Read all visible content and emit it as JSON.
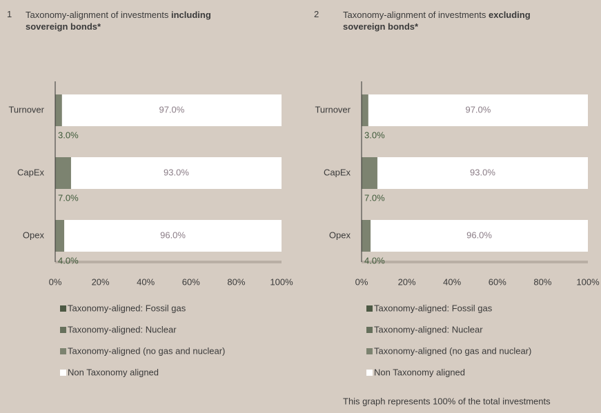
{
  "chart_data": [
    {
      "type": "stacked-bar-horizontal",
      "number": "1",
      "title": "Taxonomy-alignment of investments",
      "title_emphasis": "including sovereign bonds*",
      "categories": [
        "Turnover",
        "CapEx",
        "Opex"
      ],
      "series": [
        {
          "name": "Taxonomy-aligned: Fossil gas",
          "color": "#4d5944",
          "values": [
            0,
            0,
            0
          ]
        },
        {
          "name": "Taxonomy-aligned: Nuclear",
          "color": "#66705c",
          "values": [
            0,
            0,
            0
          ]
        },
        {
          "name": "Taxonomy-aligned (no gas and nuclear)",
          "color": "#7c8370",
          "values": [
            3,
            7,
            4
          ],
          "value_labels": [
            "3.0%",
            "7.0%",
            "4.0%"
          ]
        },
        {
          "name": "Non Taxonomy aligned",
          "color": "#ffffff",
          "values": [
            97,
            93,
            96
          ],
          "value_labels": [
            "97.0%",
            "93.0%",
            "96.0%"
          ]
        }
      ],
      "xlim": [
        0,
        100
      ],
      "xticks": [
        {
          "value": 0,
          "label": "0%"
        },
        {
          "value": 20,
          "label": "20%"
        },
        {
          "value": 40,
          "label": "40%"
        },
        {
          "value": 60,
          "label": "60%"
        },
        {
          "value": 80,
          "label": "80%"
        },
        {
          "value": 100,
          "label": "100%"
        }
      ]
    },
    {
      "type": "stacked-bar-horizontal",
      "number": "2",
      "title": "Taxonomy-alignment of investments",
      "title_emphasis": "excluding sovereign bonds*",
      "categories": [
        "Turnover",
        "CapEx",
        "Opex"
      ],
      "series": [
        {
          "name": "Taxonomy-aligned: Fossil gas",
          "color": "#4d5944",
          "values": [
            0,
            0,
            0
          ]
        },
        {
          "name": "Taxonomy-aligned: Nuclear",
          "color": "#66705c",
          "values": [
            0,
            0,
            0
          ]
        },
        {
          "name": "Taxonomy-aligned (no gas and nuclear)",
          "color": "#7c8370",
          "values": [
            3,
            7,
            4
          ],
          "value_labels": [
            "3.0%",
            "7.0%",
            "4.0%"
          ]
        },
        {
          "name": "Non Taxonomy aligned",
          "color": "#ffffff",
          "values": [
            97,
            93,
            96
          ],
          "value_labels": [
            "97.0%",
            "93.0%",
            "96.0%"
          ]
        }
      ],
      "xlim": [
        0,
        100
      ],
      "xticks": [
        {
          "value": 0,
          "label": "0%"
        },
        {
          "value": 20,
          "label": "20%"
        },
        {
          "value": 40,
          "label": "40%"
        },
        {
          "value": 60,
          "label": "60%"
        },
        {
          "value": 80,
          "label": "80%"
        },
        {
          "value": 100,
          "label": "100%"
        }
      ]
    }
  ],
  "footnote": "This graph represents 100% of the total investments"
}
